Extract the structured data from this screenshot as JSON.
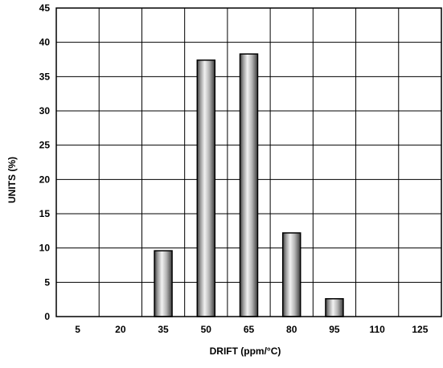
{
  "chart_data": {
    "type": "bar",
    "xlabel": "DRIFT (ppm/°C)",
    "ylabel": "UNITS (%)",
    "categories": [
      "5",
      "20",
      "35",
      "50",
      "65",
      "80",
      "95",
      "110",
      "125"
    ],
    "values": [
      0,
      0,
      9.6,
      37.4,
      38.3,
      12.2,
      2.6,
      0,
      0
    ],
    "ylim": [
      0,
      45
    ],
    "yticks": [
      0,
      5,
      10,
      15,
      20,
      25,
      30,
      35,
      40,
      45
    ],
    "grid": true,
    "legend": "none",
    "bar_fill": "metallic gray gradient",
    "colors": {
      "bar_light": "#f2f2f2",
      "bar_mid": "#b4b4b4",
      "bar_dark": "#3c3c3c",
      "grid": "#000000"
    }
  }
}
